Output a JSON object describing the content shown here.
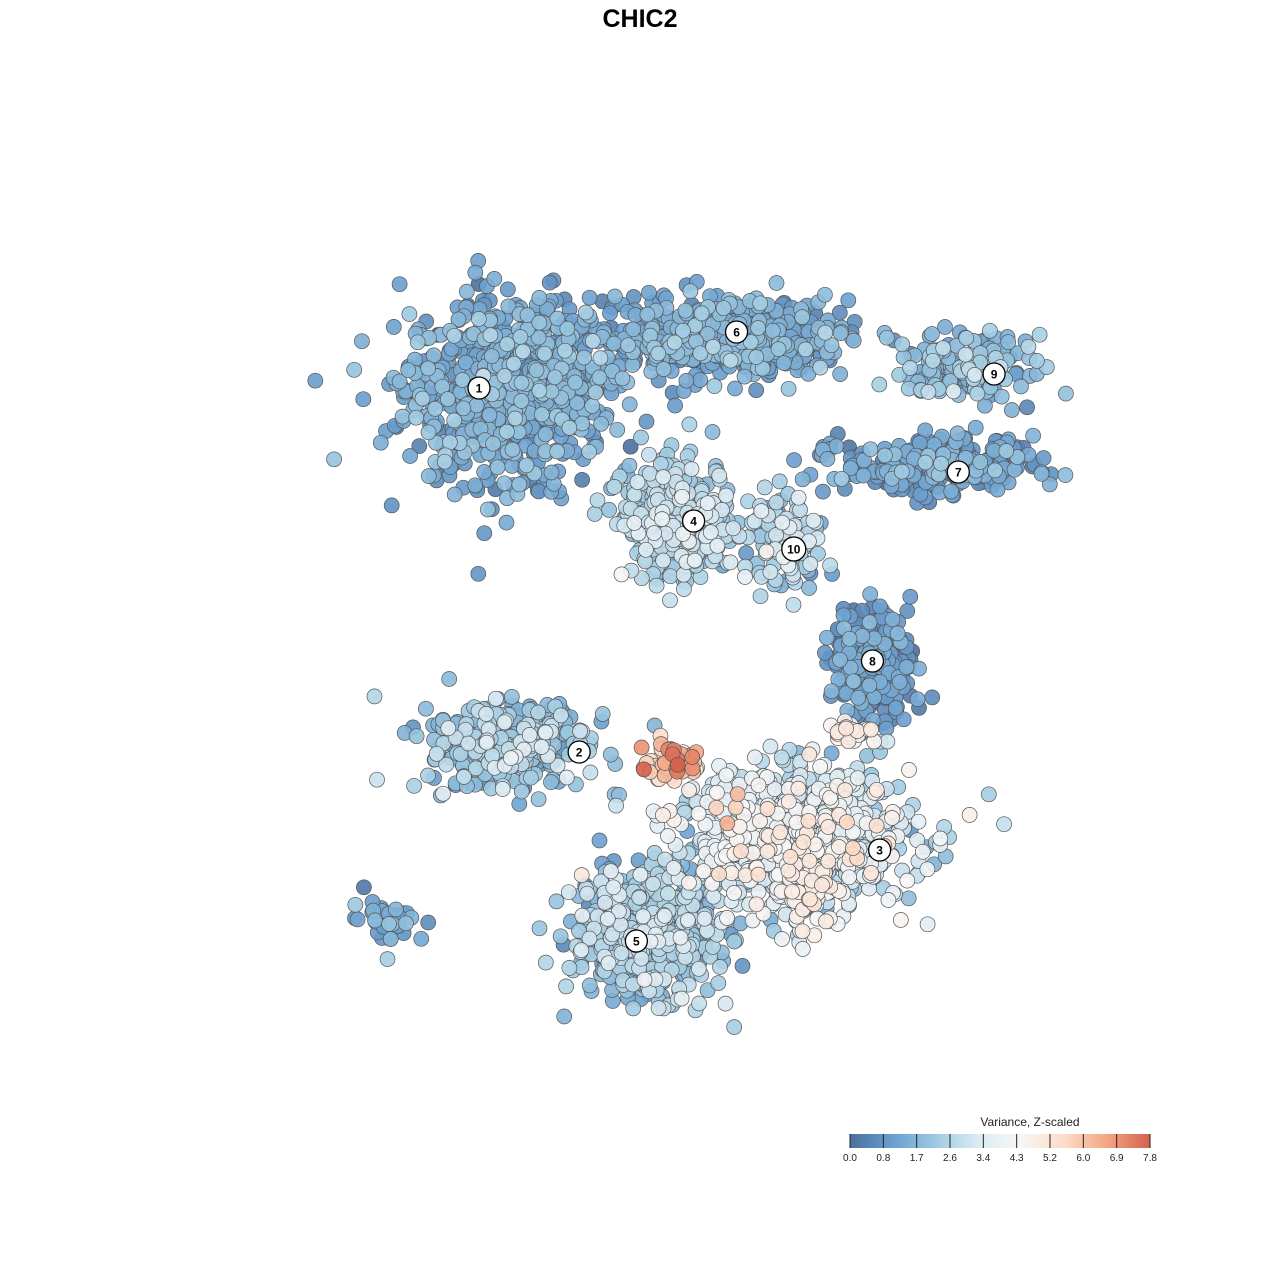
{
  "chart_data": {
    "type": "scatter",
    "title": "CHIC2",
    "xlabel": "",
    "ylabel": "",
    "grid": false,
    "axes_visible": false,
    "colorbar": {
      "title": "Variance, Z-scaled",
      "placement": "bottom-right",
      "min": 0.0,
      "max": 7.8,
      "ticks": [
        "0.0",
        "0.8",
        "1.7",
        "2.6",
        "3.4",
        "4.3",
        "5.2",
        "6.0",
        "6.9",
        "7.8"
      ],
      "colors": [
        "#4a6f9e",
        "#6a9fcf",
        "#9ecae1",
        "#ddebf3",
        "#f7f7f7",
        "#fddbc7",
        "#f4a582",
        "#d6604d"
      ]
    },
    "point_style": {
      "edge_color": "#555555",
      "opacity": 0.9
    },
    "clusters": [
      {
        "label": "1",
        "x": -2.2,
        "y": 3.6,
        "spread": [
          1.3,
          1.2
        ],
        "count": 820,
        "value_mean": 1.3,
        "value_sd": 0.5
      },
      {
        "label": "6",
        "x": 0.8,
        "y": 4.3,
        "spread": [
          1.6,
          0.5
        ],
        "count": 560,
        "value_mean": 1.3,
        "value_sd": 0.5
      },
      {
        "label": "4",
        "x": 0.2,
        "y": 1.7,
        "spread": [
          0.7,
          0.7
        ],
        "count": 420,
        "value_mean": 2.4,
        "value_sd": 0.6
      },
      {
        "label": "10",
        "x": 1.7,
        "y": 1.4,
        "spread": [
          0.5,
          0.6
        ],
        "count": 120,
        "value_mean": 2.4,
        "value_sd": 0.7
      },
      {
        "label": "9",
        "x": 4.2,
        "y": 3.9,
        "spread": [
          0.8,
          0.4
        ],
        "count": 160,
        "value_mean": 1.7,
        "value_sd": 0.6
      },
      {
        "label": "7",
        "x": 3.8,
        "y": 2.5,
        "spread": [
          1.2,
          0.35
        ],
        "count": 330,
        "value_mean": 1.0,
        "value_sd": 0.5
      },
      {
        "label": "8",
        "x": 2.9,
        "y": -0.3,
        "spread": [
          0.5,
          0.7
        ],
        "count": 300,
        "value_mean": 0.8,
        "value_sd": 0.5
      },
      {
        "label": "2",
        "x": -2.2,
        "y": -1.5,
        "spread": [
          1.0,
          0.6
        ],
        "count": 330,
        "value_mean": 2.0,
        "value_sd": 0.7
      },
      {
        "label": "3",
        "x": 1.8,
        "y": -2.8,
        "spread": [
          1.5,
          0.9
        ],
        "count": 850,
        "value_mean": 3.2,
        "value_sd": 0.9
      },
      {
        "label": "5",
        "x": -0.3,
        "y": -4.2,
        "spread": [
          0.9,
          0.8
        ],
        "count": 620,
        "value_mean": 2.1,
        "value_sd": 0.7
      },
      {
        "label": "",
        "x": 0.1,
        "y": -1.8,
        "spread": [
          0.3,
          0.3
        ],
        "count": 60,
        "value_mean": 5.8,
        "value_sd": 1.0
      },
      {
        "label": "",
        "x": 2.0,
        "y": -3.5,
        "spread": [
          0.4,
          0.5
        ],
        "count": 70,
        "value_mean": 4.6,
        "value_sd": 0.4
      },
      {
        "label": "",
        "x": 2.6,
        "y": -1.3,
        "spread": [
          0.3,
          0.15
        ],
        "count": 25,
        "value_mean": 4.7,
        "value_sd": 0.3
      },
      {
        "label": "",
        "x": -3.9,
        "y": -4.0,
        "spread": [
          0.5,
          0.3
        ],
        "count": 35,
        "value_mean": 1.3,
        "value_sd": 0.5
      }
    ],
    "cluster_labels": [
      {
        "text": "1",
        "x": -2.6,
        "y": 3.6
      },
      {
        "text": "6",
        "x": 1.0,
        "y": 4.4
      },
      {
        "text": "4",
        "x": 0.4,
        "y": 1.7
      },
      {
        "text": "10",
        "x": 1.8,
        "y": 1.3
      },
      {
        "text": "9",
        "x": 4.6,
        "y": 3.8
      },
      {
        "text": "7",
        "x": 4.1,
        "y": 2.4
      },
      {
        "text": "8",
        "x": 2.9,
        "y": -0.3
      },
      {
        "text": "2",
        "x": -1.2,
        "y": -1.6
      },
      {
        "text": "3",
        "x": 3.0,
        "y": -3.0
      },
      {
        "text": "5",
        "x": -0.4,
        "y": -4.3
      }
    ],
    "xlim": [
      -6.5,
      6.5
    ],
    "ylim": [
      -6.5,
      6.5
    ]
  }
}
